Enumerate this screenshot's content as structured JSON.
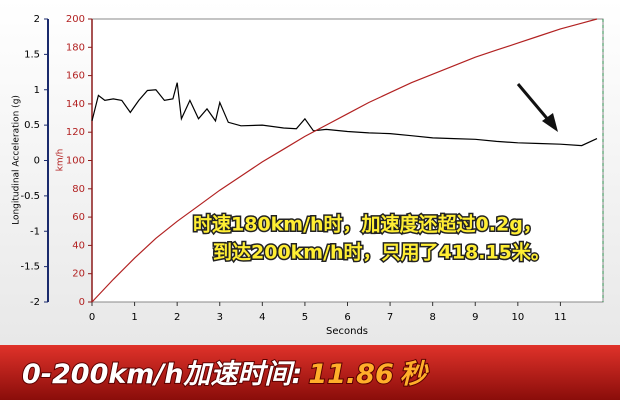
{
  "chart_data": {
    "type": "line",
    "x_label": "Seconds",
    "y_label": "Longitudinal Acceleration (g)",
    "y2_label": "km/h",
    "xlim": [
      0,
      12
    ],
    "xticks": [
      0,
      1,
      2,
      3,
      4,
      5,
      6,
      7,
      8,
      9,
      10,
      11
    ],
    "ylim": [
      -2,
      2
    ],
    "yticks": [
      -2,
      -1.5,
      -1,
      -0.5,
      0,
      0.5,
      1,
      1.5,
      2
    ],
    "y2lim": [
      0,
      200
    ],
    "y2ticks": [
      0,
      20,
      40,
      60,
      80,
      100,
      120,
      140,
      160,
      180,
      200
    ],
    "series": [
      {
        "color": "#000000",
        "x": [
          0,
          0.15,
          0.3,
          0.5,
          0.7,
          0.9,
          1.1,
          1.3,
          1.5,
          1.7,
          1.9,
          2.0,
          2.1,
          2.3,
          2.5,
          2.7,
          2.9,
          3.0,
          3.2,
          3.5,
          4.0,
          4.5,
          4.8,
          5.0,
          5.2,
          5.5,
          6,
          6.5,
          7,
          7.5,
          8,
          8.5,
          9,
          9.5,
          10,
          10.5,
          11,
          11.5,
          11.86
        ],
        "values": [
          0.56,
          0.92,
          0.85,
          0.87,
          0.85,
          0.68,
          0.85,
          0.99,
          1.0,
          0.85,
          0.87,
          1.1,
          0.59,
          0.85,
          0.59,
          0.73,
          0.56,
          0.82,
          0.54,
          0.49,
          0.5,
          0.46,
          0.45,
          0.59,
          0.42,
          0.44,
          0.41,
          0.39,
          0.38,
          0.35,
          0.32,
          0.31,
          0.3,
          0.27,
          0.25,
          0.24,
          0.23,
          0.21,
          0.31
        ]
      },
      {
        "color": "#b22222",
        "axis": "y2",
        "x": [
          0,
          0.5,
          1,
          1.5,
          2,
          2.5,
          3,
          3.5,
          4,
          4.5,
          5,
          5.5,
          6,
          6.5,
          7,
          7.5,
          8,
          8.5,
          9,
          9.5,
          10,
          10.5,
          11,
          11.5,
          11.86
        ],
        "values": [
          0,
          16,
          31,
          45,
          57,
          68,
          79,
          89,
          99,
          108,
          117,
          125,
          133,
          141,
          148,
          155,
          161,
          167,
          173,
          178,
          183,
          188,
          193,
          197,
          200
        ]
      }
    ],
    "annotations": [
      "时速180km/h时，加速度还超过0.2g，",
      "到达200km/h时，只用了418.15米。"
    ]
  },
  "banner": {
    "label": "0-200km/h加速时间:",
    "value": "11.86",
    "unit": "秒"
  }
}
